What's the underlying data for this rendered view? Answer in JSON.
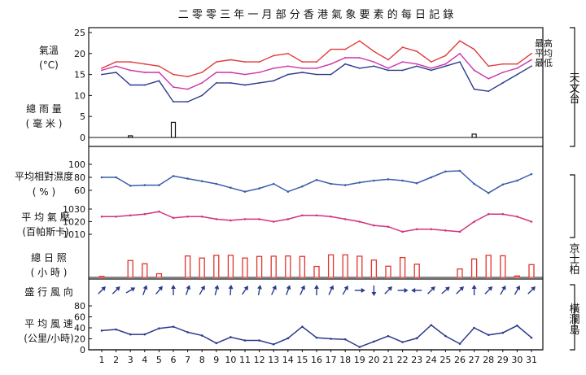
{
  "title": "二 零 零 三 年 一 月 部 分 香 港 氣 象 要 素 的 每 日 記 錄",
  "colors": {
    "max": "#e03a3a",
    "mean": "#cc33aa",
    "min": "#2b3a8c",
    "humidity": "#3a5da8",
    "pressure": "#d2337a",
    "sunshine": "#e0352f",
    "wind": "#2b3a8c",
    "rain": "#111111",
    "frame": "#111111"
  },
  "stations": {
    "observatory": "天文台",
    "kings_park": "京士柏",
    "waglan": "橫瀾島"
  },
  "chart_data": [
    {
      "type": "line",
      "name": "temperature",
      "label": "氣溫",
      "unit": "(°C)",
      "x": [
        1,
        2,
        3,
        4,
        5,
        6,
        7,
        8,
        9,
        10,
        11,
        12,
        13,
        14,
        15,
        16,
        17,
        18,
        19,
        20,
        21,
        22,
        23,
        24,
        25,
        26,
        27,
        28,
        29,
        30,
        31
      ],
      "ylim": [
        0,
        25
      ],
      "yticks": [
        0,
        5,
        10,
        15,
        20,
        25
      ],
      "series": [
        {
          "name": "最高",
          "color_key": "max",
          "values": [
            16.5,
            18,
            18,
            17.5,
            17,
            15,
            14.5,
            15.5,
            18,
            18.5,
            18,
            18,
            19.5,
            20,
            18,
            18,
            21,
            21,
            23,
            20.5,
            18.5,
            21.5,
            20.5,
            18,
            19.5,
            23,
            21,
            17,
            17.5,
            17.5,
            20
          ]
        },
        {
          "name": "平均",
          "color_key": "mean",
          "values": [
            16,
            17,
            16,
            15.5,
            15.5,
            12,
            11.5,
            13,
            15.5,
            15.5,
            15,
            15.5,
            16.5,
            17,
            16.5,
            16.5,
            17.5,
            19,
            19,
            18,
            16.5,
            18,
            17.5,
            16.5,
            17.5,
            20,
            16,
            14,
            15.5,
            16.5,
            18.5
          ]
        },
        {
          "name": "最低",
          "color_key": "min",
          "values": [
            15,
            15.5,
            12.5,
            12.5,
            13.5,
            8.5,
            8.5,
            10,
            13,
            13,
            12.5,
            13,
            13.5,
            15,
            15.5,
            15,
            15,
            17.5,
            16.5,
            17,
            16,
            16,
            17,
            16,
            17,
            18,
            11.5,
            11,
            13,
            15,
            17
          ]
        }
      ]
    },
    {
      "type": "bar",
      "name": "rainfall",
      "label": "總 雨 量",
      "unit": "( 毫 米 )",
      "x": [
        1,
        2,
        3,
        4,
        5,
        6,
        7,
        8,
        9,
        10,
        11,
        12,
        13,
        14,
        15,
        16,
        17,
        18,
        19,
        20,
        21,
        22,
        23,
        24,
        25,
        26,
        27,
        28,
        29,
        30,
        31
      ],
      "values": [
        0,
        0,
        0.4,
        0,
        0,
        3.6,
        0,
        0,
        0,
        0,
        0,
        0,
        0,
        0,
        0,
        0,
        0,
        0,
        0,
        0,
        0,
        0,
        0,
        0,
        0,
        0,
        0.8,
        0,
        0,
        0,
        0
      ],
      "ylim": [
        0,
        25
      ]
    },
    {
      "type": "line",
      "name": "humidity",
      "label": "平均相對濕度",
      "unit": "( % )",
      "x": [
        1,
        2,
        3,
        4,
        5,
        6,
        7,
        8,
        9,
        10,
        11,
        12,
        13,
        14,
        15,
        16,
        17,
        18,
        19,
        20,
        21,
        22,
        23,
        24,
        25,
        26,
        27,
        28,
        29,
        30,
        31
      ],
      "values": [
        80,
        80,
        67,
        68,
        68,
        82,
        78,
        74,
        70,
        64,
        58,
        63,
        70,
        58,
        66,
        76,
        70,
        68,
        72,
        75,
        77,
        75,
        71,
        80,
        89,
        90,
        70,
        56,
        69,
        75,
        85
      ],
      "ylim": [
        40,
        100
      ],
      "yticks": [
        40,
        60,
        80,
        100
      ]
    },
    {
      "type": "line",
      "name": "pressure",
      "label": "平 均 氣 壓",
      "unit": "(百帕斯卡)",
      "x": [
        1,
        2,
        3,
        4,
        5,
        6,
        7,
        8,
        9,
        10,
        11,
        12,
        13,
        14,
        15,
        16,
        17,
        18,
        19,
        20,
        21,
        22,
        23,
        24,
        25,
        26,
        27,
        28,
        29,
        30,
        31
      ],
      "values": [
        1024,
        1024,
        1025,
        1026,
        1028,
        1023,
        1024,
        1024,
        1022,
        1021,
        1022,
        1022,
        1020,
        1022,
        1025,
        1025,
        1024,
        1022,
        1020,
        1017,
        1016,
        1012,
        1014,
        1014,
        1013,
        1012,
        1020,
        1026,
        1026,
        1024,
        1020
      ],
      "ylim": [
        1010,
        1030
      ],
      "yticks": [
        1010,
        1020,
        1030
      ]
    },
    {
      "type": "bar",
      "name": "sunshine",
      "label": "總 日 照",
      "unit": "( 小 時 )",
      "x": [
        1,
        2,
        3,
        4,
        5,
        6,
        7,
        8,
        9,
        10,
        11,
        12,
        13,
        14,
        15,
        16,
        17,
        18,
        19,
        20,
        21,
        22,
        23,
        24,
        25,
        26,
        27,
        28,
        29,
        30,
        31
      ],
      "values": [
        0.4,
        0,
        7.4,
        6,
        1.6,
        0,
        9.4,
        8.5,
        9.7,
        9.7,
        8.5,
        9.2,
        9.3,
        9.4,
        9.2,
        4.8,
        9.9,
        9.9,
        9.3,
        7.6,
        4.9,
        8.7,
        5.8,
        0,
        0,
        3.7,
        8.1,
        9.7,
        9.5,
        0.6,
        5.6
      ],
      "ylim": [
        0,
        10
      ]
    },
    {
      "type": "arrows",
      "name": "wind_direction",
      "label": "盛 行 風 向",
      "x": [
        1,
        2,
        3,
        4,
        5,
        6,
        7,
        8,
        9,
        10,
        11,
        12,
        13,
        14,
        15,
        16,
        17,
        18,
        19,
        20,
        21,
        22,
        23,
        24,
        25,
        26,
        27,
        28,
        29,
        30,
        31
      ],
      "directions_deg": [
        225,
        225,
        240,
        200,
        220,
        180,
        200,
        210,
        195,
        185,
        215,
        190,
        205,
        200,
        205,
        180,
        205,
        210,
        270,
        0,
        225,
        270,
        90,
        225,
        230,
        225,
        180,
        225,
        210,
        210,
        225
      ]
    },
    {
      "type": "line",
      "name": "wind_speed",
      "label": "平 均 風 速",
      "unit": "(公里/小時)",
      "x": [
        1,
        2,
        3,
        4,
        5,
        6,
        7,
        8,
        9,
        10,
        11,
        12,
        13,
        14,
        15,
        16,
        17,
        18,
        19,
        20,
        21,
        22,
        23,
        24,
        25,
        26,
        27,
        28,
        29,
        30,
        31
      ],
      "values": [
        35,
        37,
        28,
        28,
        39,
        42,
        32,
        26,
        12,
        23,
        17,
        17,
        10,
        21,
        42,
        22,
        20,
        19,
        5,
        15,
        25,
        14,
        21,
        45,
        25,
        11,
        40,
        27,
        31,
        44,
        22
      ],
      "ylim": [
        0,
        80
      ],
      "yticks": [
        0,
        20,
        40,
        60,
        80
      ],
      "xticks": [
        1,
        2,
        3,
        4,
        5,
        6,
        7,
        8,
        9,
        10,
        11,
        12,
        13,
        14,
        15,
        16,
        17,
        18,
        19,
        20,
        21,
        22,
        23,
        24,
        25,
        26,
        27,
        28,
        29,
        30,
        31
      ]
    }
  ]
}
